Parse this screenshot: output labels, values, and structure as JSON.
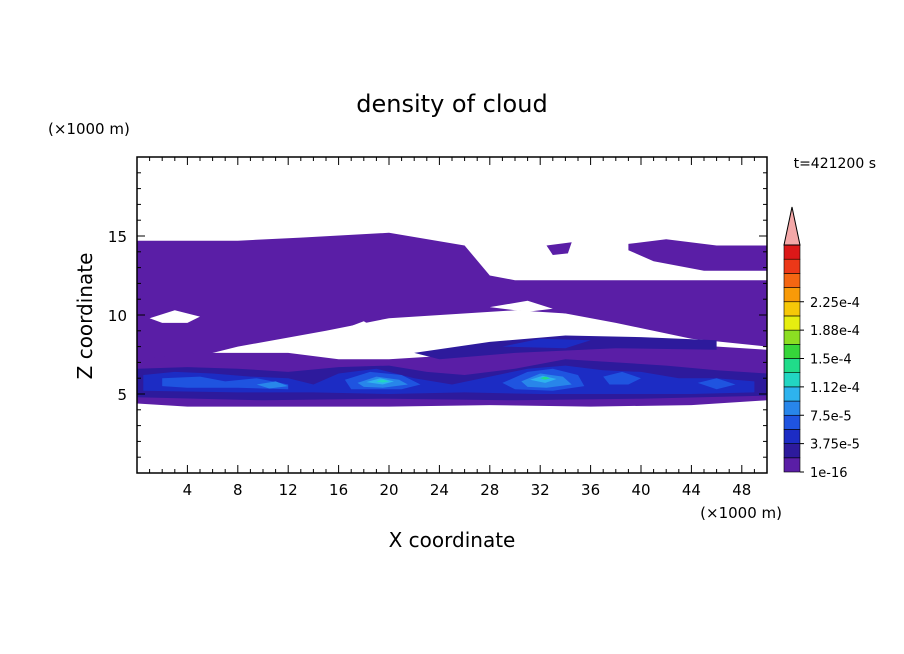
{
  "chart_data": {
    "type": "heatmap",
    "title": "density of cloud",
    "time_label": "t=421200 s",
    "xlabel": "X coordinate",
    "ylabel": "Z coordinate",
    "x_unit": "(×1000 m)",
    "y_unit": "(×1000 m)",
    "xlim": [
      0,
      50
    ],
    "ylim": [
      0,
      20
    ],
    "x_ticks": [
      4,
      8,
      12,
      16,
      20,
      24,
      28,
      32,
      36,
      40,
      44,
      48
    ],
    "y_ticks": [
      5,
      10,
      15
    ],
    "colorbar": {
      "labels": [
        "1e-16",
        "3.75e-5",
        "7.5e-5",
        "1.12e-4",
        "1.5e-4",
        "1.88e-4",
        "2.25e-4"
      ],
      "colors": [
        "#5a1ea6",
        "#2d1a9c",
        "#1c2cc4",
        "#1f54e0",
        "#2886ea",
        "#2eb3ee",
        "#22d6c2",
        "#20dc8a",
        "#36d63a",
        "#8cde22",
        "#e6ee10",
        "#f6c808",
        "#f89a08",
        "#f46612",
        "#ec3818",
        "#dc1818"
      ],
      "extend_color": "#f4a8a8"
    },
    "cloud_layers": [
      {
        "level": 0,
        "color": "#5a1ea6",
        "polygon": [
          [
            0,
            14.7
          ],
          [
            8,
            14.7
          ],
          [
            13,
            14.9
          ],
          [
            20,
            15.2
          ],
          [
            26,
            14.4
          ],
          [
            28,
            12.5
          ],
          [
            30,
            12.2
          ],
          [
            50,
            12.2
          ],
          [
            50,
            8.5
          ],
          [
            45,
            9.2
          ],
          [
            40,
            9.8
          ],
          [
            30,
            10.3
          ],
          [
            20,
            9.8
          ],
          [
            15,
            9
          ],
          [
            8,
            8
          ],
          [
            3,
            7
          ],
          [
            0,
            6.5
          ]
        ]
      },
      {
        "level": 0,
        "color": "#5a1ea6",
        "polygon": [
          [
            32,
            11.7
          ],
          [
            50,
            11.7
          ],
          [
            50,
            8
          ],
          [
            44,
            8.5
          ],
          [
            38,
            9.5
          ],
          [
            32,
            10.4
          ]
        ]
      },
      {
        "level": 0,
        "color": "#5a1ea6",
        "polygon": [
          [
            39,
            14.5
          ],
          [
            42,
            14.8
          ],
          [
            46,
            14.4
          ],
          [
            50,
            14.4
          ],
          [
            50,
            12.8
          ],
          [
            45,
            12.8
          ],
          [
            41,
            13.4
          ],
          [
            39,
            14.1
          ]
        ]
      },
      {
        "level": 0,
        "color": "#5a1ea6",
        "polygon": [
          [
            32.5,
            14.4
          ],
          [
            34.5,
            14.6
          ],
          [
            34.2,
            13.9
          ],
          [
            33,
            13.8
          ]
        ]
      },
      {
        "level": 0,
        "color": "#5a1ea6",
        "polygon": [
          [
            0,
            7.2
          ],
          [
            5,
            7.6
          ],
          [
            12,
            7.6
          ],
          [
            16,
            7.2
          ],
          [
            20,
            7.2
          ],
          [
            24,
            7.4
          ],
          [
            30,
            8
          ],
          [
            36,
            8.2
          ],
          [
            42,
            8.2
          ],
          [
            50,
            7.8
          ],
          [
            50,
            4.6
          ],
          [
            44,
            4.3
          ],
          [
            36,
            4.2
          ],
          [
            28,
            4.3
          ],
          [
            20,
            4.2
          ],
          [
            12,
            4.2
          ],
          [
            4,
            4.2
          ],
          [
            0,
            4.4
          ]
        ]
      },
      {
        "level": 1,
        "color": "#2d1a9c",
        "polygon": [
          [
            0,
            6.6
          ],
          [
            4,
            6.7
          ],
          [
            8,
            6.6
          ],
          [
            12,
            6.4
          ],
          [
            16,
            6.7
          ],
          [
            20,
            6.8
          ],
          [
            23,
            6.4
          ],
          [
            26,
            6.2
          ],
          [
            30,
            6.6
          ],
          [
            34,
            7.2
          ],
          [
            38,
            7
          ],
          [
            42,
            6.8
          ],
          [
            46,
            6.5
          ],
          [
            50,
            6.3
          ],
          [
            50,
            4.9
          ],
          [
            40,
            4.7
          ],
          [
            30,
            4.6
          ],
          [
            20,
            4.7
          ],
          [
            10,
            4.6
          ],
          [
            0,
            4.8
          ]
        ]
      },
      {
        "level": 1,
        "color": "#2d1a9c",
        "polygon": [
          [
            22,
            7.6
          ],
          [
            28,
            8.3
          ],
          [
            34,
            8.7
          ],
          [
            40,
            8.6
          ],
          [
            46,
            8.4
          ],
          [
            46,
            7.8
          ],
          [
            38,
            7.9
          ],
          [
            30,
            7.6
          ],
          [
            24,
            7.2
          ]
        ]
      },
      {
        "level": 2,
        "color": "#1c2cc4",
        "polygon": [
          [
            0.5,
            6.2
          ],
          [
            3,
            6.4
          ],
          [
            6,
            6.3
          ],
          [
            9,
            6.1
          ],
          [
            12,
            6
          ],
          [
            14,
            5.6
          ],
          [
            16,
            6.3
          ],
          [
            19,
            6.6
          ],
          [
            22,
            6
          ],
          [
            25,
            5.6
          ],
          [
            28,
            6.1
          ],
          [
            31,
            6.6
          ],
          [
            34,
            6.8
          ],
          [
            37,
            6.5
          ],
          [
            40,
            6.4
          ],
          [
            43,
            6
          ],
          [
            46,
            6
          ],
          [
            49,
            5.8
          ],
          [
            49,
            5.1
          ],
          [
            44,
            5
          ],
          [
            38,
            5
          ],
          [
            32,
            5
          ],
          [
            26,
            5.1
          ],
          [
            20,
            5
          ],
          [
            14,
            5.1
          ],
          [
            8,
            5.1
          ],
          [
            0.5,
            5.2
          ]
        ]
      },
      {
        "level": 2,
        "color": "#1c2cc4",
        "polygon": [
          [
            29,
            8
          ],
          [
            32,
            8.5
          ],
          [
            36,
            8.4
          ],
          [
            34,
            7.9
          ]
        ]
      },
      {
        "level": 3,
        "color": "#1f54e0",
        "polygon": [
          [
            2,
            6
          ],
          [
            5,
            6.1
          ],
          [
            7,
            5.8
          ],
          [
            9.5,
            6
          ],
          [
            12,
            5.6
          ],
          [
            12,
            5.3
          ],
          [
            8,
            5.4
          ],
          [
            4,
            5.4
          ],
          [
            2,
            5.5
          ]
        ]
      },
      {
        "level": 3,
        "color": "#1f54e0",
        "polygon": [
          [
            16.5,
            5.9
          ],
          [
            18.5,
            6.4
          ],
          [
            21,
            6.2
          ],
          [
            22.5,
            5.6
          ],
          [
            21,
            5.3
          ],
          [
            17,
            5.3
          ]
        ]
      },
      {
        "level": 3,
        "color": "#1f54e0",
        "polygon": [
          [
            29,
            5.7
          ],
          [
            31,
            6.4
          ],
          [
            33,
            6.6
          ],
          [
            35,
            6.2
          ],
          [
            35.5,
            5.5
          ],
          [
            33,
            5.2
          ],
          [
            30,
            5.3
          ]
        ]
      },
      {
        "level": 3,
        "color": "#1f54e0",
        "polygon": [
          [
            37,
            6.1
          ],
          [
            38.5,
            6.4
          ],
          [
            40,
            6
          ],
          [
            39,
            5.6
          ],
          [
            37.5,
            5.6
          ]
        ]
      },
      {
        "level": 3,
        "color": "#1f54e0",
        "polygon": [
          [
            44.5,
            5.7
          ],
          [
            46,
            6
          ],
          [
            47.5,
            5.6
          ],
          [
            46,
            5.3
          ]
        ]
      },
      {
        "level": 4,
        "color": "#2886ea",
        "polygon": [
          [
            9.5,
            5.6
          ],
          [
            11,
            5.8
          ],
          [
            12,
            5.5
          ],
          [
            10.5,
            5.35
          ]
        ]
      },
      {
        "level": 4,
        "color": "#2886ea",
        "polygon": [
          [
            17.5,
            5.7
          ],
          [
            19,
            6.1
          ],
          [
            20.8,
            5.9
          ],
          [
            21.5,
            5.6
          ],
          [
            19.5,
            5.4
          ],
          [
            18,
            5.45
          ]
        ]
      },
      {
        "level": 4,
        "color": "#2886ea",
        "polygon": [
          [
            30.5,
            5.8
          ],
          [
            32,
            6.3
          ],
          [
            33.8,
            6.1
          ],
          [
            34.5,
            5.6
          ],
          [
            32.5,
            5.4
          ],
          [
            31,
            5.45
          ]
        ]
      },
      {
        "level": 5,
        "color": "#2eb3ee",
        "polygon": [
          [
            18.2,
            5.75
          ],
          [
            19.3,
            6
          ],
          [
            20.4,
            5.8
          ],
          [
            19.5,
            5.6
          ]
        ]
      },
      {
        "level": 5,
        "color": "#2eb3ee",
        "polygon": [
          [
            31.2,
            5.9
          ],
          [
            32.2,
            6.15
          ],
          [
            33.3,
            5.95
          ],
          [
            32.4,
            5.7
          ]
        ]
      },
      {
        "level": 6,
        "color": "#22d6c2",
        "polygon": [
          [
            19,
            5.8
          ],
          [
            19.5,
            5.92
          ],
          [
            20,
            5.8
          ],
          [
            19.5,
            5.72
          ]
        ]
      },
      {
        "level": 7,
        "color": "#20dc8a",
        "polygon": [
          [
            32,
            6
          ],
          [
            32.4,
            6.1
          ],
          [
            32.8,
            6
          ],
          [
            32.4,
            5.9
          ]
        ]
      }
    ],
    "clear_regions": [
      {
        "polygon": [
          [
            16,
            9
          ],
          [
            18,
            9.6
          ],
          [
            19.5,
            8.9
          ],
          [
            19,
            8.4
          ],
          [
            17,
            8.4
          ]
        ]
      },
      {
        "polygon": [
          [
            1,
            9.8
          ],
          [
            3,
            10.3
          ],
          [
            5,
            9.9
          ],
          [
            4,
            9.5
          ],
          [
            2,
            9.5
          ]
        ]
      },
      {
        "polygon": [
          [
            28,
            10.5
          ],
          [
            31,
            10.9
          ],
          [
            33,
            10.4
          ],
          [
            31,
            10.2
          ]
        ]
      }
    ]
  }
}
